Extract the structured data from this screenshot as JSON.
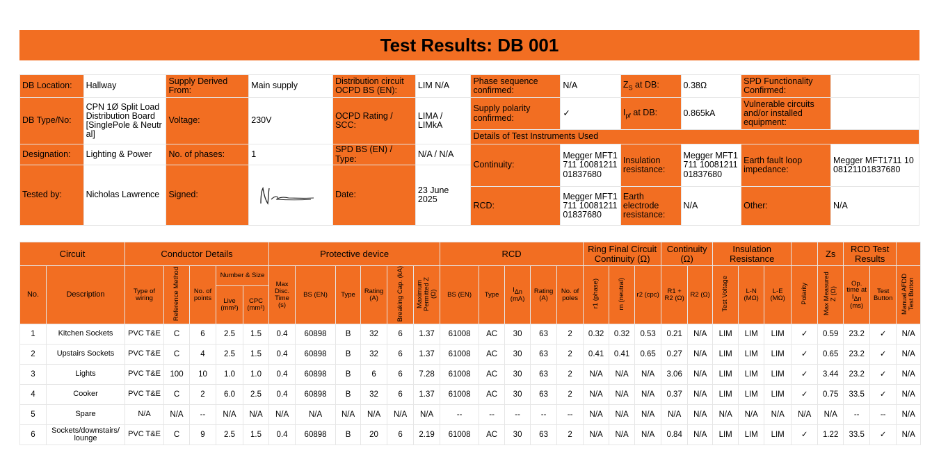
{
  "title": "Test Results: DB 001",
  "info": {
    "db_location_label": "DB Location:",
    "db_location": "Hallway",
    "supply_derived_label": "Supply Derived From:",
    "supply_derived": "Main supply",
    "dist_circuit_label": "Distribution circuit OCPD BS (EN):",
    "dist_circuit": "LIM N/A",
    "phase_seq_label": "Phase sequence confirmed:",
    "phase_seq": "N/A",
    "zs_label_main": "Z",
    "zs_label_sub": "S",
    "zs_label_tail": " at DB:",
    "zs": "0.38Ω",
    "spd_func_label": "SPD Functionality Confirmed:",
    "spd_func": "",
    "db_type_label": "DB Type/No:",
    "db_type": "CPN 1Ø Split Load Distribution Board [SinglePole & Neutral]",
    "voltage_label": "Voltage:",
    "voltage": "230V",
    "ocpd_label": "OCPD Rating / SCC:",
    "ocpd": "LIMA / LIMkA",
    "polarity_label": "Supply polarity confirmed:",
    "polarity": "✓",
    "ipf_label_main": "I",
    "ipf_label_sub": "pf",
    "ipf_label_tail": " at DB:",
    "ipf": "0.865kA",
    "vuln_label": "Vulnerable circuits and/or installed equipment:",
    "vuln": "",
    "designation_label": "Designation:",
    "designation": "Lighting & Power",
    "phases_label": "No. of phases:",
    "phases": "1",
    "spd_bs_label": "SPD BS (EN) / Type:",
    "spd_bs": "N/A / N/A",
    "instruments_header": "Details of Test Instruments Used",
    "continuity_label": "Continuity:",
    "continuity": "Megger MFT1711 1008121101837680",
    "insulation_label": "Insulation resistance:",
    "insulation": "Megger MFT1711 1008121101837680",
    "efli_label": "Earth fault loop impedance:",
    "efli": "Megger MFT1711 1008121101837680",
    "tested_by_label": "Tested by:",
    "tested_by": "Nicholas Lawrence",
    "signed_label": "Signed:",
    "date_label": "Date:",
    "date": "23 June 2025",
    "rcd_label": "RCD:",
    "rcd": "Megger MFT1711 1008121101837680",
    "earth_electrode_label": "Earth electrode resistance:",
    "earth_electrode": "N/A",
    "other_label": "Other:",
    "other": "N/A"
  },
  "groups": {
    "circuit": "Circuit",
    "conductor": "Conductor Details",
    "protective": "Protective device",
    "rcd": "RCD",
    "ring": "Ring Final Circuit Continuity (Ω)",
    "continuity": "Continuity (Ω)",
    "insulation": "Insulation Resistance",
    "zs": "Zs",
    "rcd_test": "RCD Test Results",
    "number_size": "Number & Size"
  },
  "columns": {
    "no": "No.",
    "description": "Description",
    "wiring": "Type of wiring",
    "ref_method": "Reference Method",
    "points": "No. of points",
    "live": "Live (mm²)",
    "cpc": "CPC (mm²)",
    "disc_time": "Max Disc. Time (s)",
    "bs_en": "BS (EN)",
    "type": "Type",
    "rating": "Rating (A)",
    "breaking": "Breaking Cap. (kA)",
    "max_z": "Maximum Permitted Z (Ω)",
    "rcd_bs": "BS (EN)",
    "rcd_type": "Type",
    "rcd_idn_main": "I",
    "rcd_idn_sub": "Δn",
    "rcd_idn_tail": "(mA)",
    "rcd_rating": "Rating (A)",
    "rcd_poles": "No. of poles",
    "r1": "r1 (phase)",
    "rn": "rn (neutral)",
    "r2": "r2 (cpc)",
    "r1r2": "R1 + R2 (Ω)",
    "r2only": "R2 (Ω)",
    "test_voltage": "Test Voltage",
    "ln": "L-N (MΩ)",
    "le": "L-E (MΩ)",
    "polarity": "Polarity",
    "max_zs": "Max Measured Z (Ω)",
    "op_time_main": "Op. time at I",
    "op_time_sub": "Δn",
    "op_time_tail": "(ms)",
    "test_button": "Test Button",
    "afdd": "Manual AFDD Test Button"
  },
  "rows": [
    [
      "1",
      "Kitchen Sockets",
      "PVC T&E",
      "C",
      "6",
      "2.5",
      "1.5",
      "0.4",
      "60898",
      "B",
      "32",
      "6",
      "1.37",
      "61008",
      "AC",
      "30",
      "63",
      "2",
      "0.32",
      "0.32",
      "0.53",
      "0.21",
      "N/A",
      "LIM",
      "LIM",
      "LIM",
      "✓",
      "0.59",
      "23.2",
      "✓",
      "N/A"
    ],
    [
      "2",
      "Upstairs Sockets",
      "PVC T&E",
      "C",
      "4",
      "2.5",
      "1.5",
      "0.4",
      "60898",
      "B",
      "32",
      "6",
      "1.37",
      "61008",
      "AC",
      "30",
      "63",
      "2",
      "0.41",
      "0.41",
      "0.65",
      "0.27",
      "N/A",
      "LIM",
      "LIM",
      "LIM",
      "✓",
      "0.65",
      "23.2",
      "✓",
      "N/A"
    ],
    [
      "3",
      "Lights",
      "PVC T&E",
      "100",
      "10",
      "1.0",
      "1.0",
      "0.4",
      "60898",
      "B",
      "6",
      "6",
      "7.28",
      "61008",
      "AC",
      "30",
      "63",
      "2",
      "N/A",
      "N/A",
      "N/A",
      "3.06",
      "N/A",
      "LIM",
      "LIM",
      "LIM",
      "✓",
      "3.44",
      "23.2",
      "✓",
      "N/A"
    ],
    [
      "4",
      "Cooker",
      "PVC T&E",
      "C",
      "2",
      "6.0",
      "2.5",
      "0.4",
      "60898",
      "B",
      "32",
      "6",
      "1.37",
      "61008",
      "AC",
      "30",
      "63",
      "2",
      "N/A",
      "N/A",
      "N/A",
      "0.37",
      "N/A",
      "LIM",
      "LIM",
      "LIM",
      "✓",
      "0.75",
      "33.5",
      "✓",
      "N/A"
    ],
    [
      "5",
      "Spare",
      "N/A",
      "N/A",
      "--",
      "N/A",
      "N/A",
      "N/A",
      "N/A",
      "N/A",
      "N/A",
      "N/A",
      "N/A",
      "--",
      "--",
      "--",
      "--",
      "--",
      "N/A",
      "N/A",
      "N/A",
      "N/A",
      "N/A",
      "N/A",
      "N/A",
      "N/A",
      "N/A",
      "N/A",
      "--",
      "--",
      "N/A"
    ],
    [
      "6",
      "Sockets/downstairs/ lounge",
      "PVC T&E",
      "C",
      "9",
      "2.5",
      "1.5",
      "0.4",
      "60898",
      "B",
      "20",
      "6",
      "2.19",
      "61008",
      "AC",
      "30",
      "63",
      "2",
      "N/A",
      "N/A",
      "N/A",
      "0.84",
      "N/A",
      "LIM",
      "LIM",
      "LIM",
      "✓",
      "1.22",
      "33.5",
      "✓",
      "N/A"
    ]
  ]
}
